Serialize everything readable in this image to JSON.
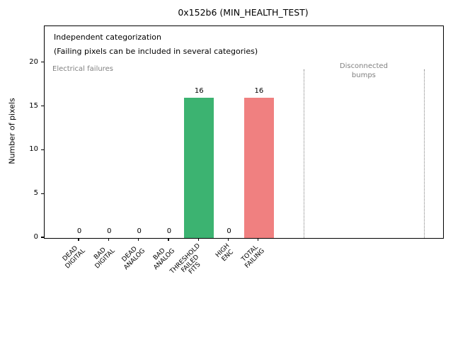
{
  "chart_data": {
    "type": "bar",
    "title": "0x152b6 (MIN_HEALTH_TEST)",
    "ylabel": "Number of pixels",
    "xlabel": "",
    "categories": [
      "DEAD\nDIGITAL",
      "BAD\nDIGITAL",
      "DEAD\nANALOG",
      "BAD\nANALOG",
      "THRESHOLD\nFAILED\nFITS",
      "HIGH\nENC",
      "TOTAL\nFAILING"
    ],
    "values": [
      0,
      0,
      0,
      0,
      16,
      0,
      16
    ],
    "value_labels": [
      "0",
      "0",
      "0",
      "0",
      "16",
      "0",
      "16"
    ],
    "bar_colors": [
      "#3cb371",
      "#3cb371",
      "#3cb371",
      "#3cb371",
      "#3cb371",
      "#3cb371",
      "#f08080"
    ],
    "yticks": [
      0,
      5,
      10,
      15,
      20
    ],
    "ylim": [
      0,
      24.2
    ],
    "xlim": [
      -1.16,
      12.15
    ],
    "grid": false,
    "legend": null,
    "annotations": {
      "line1": "Independent categorization",
      "line2": "(Failing pixels can be included in several categories)",
      "left_region": "Electrical failures",
      "right_region_line1": "Disconnected",
      "right_region_line2": "bumps"
    },
    "region_dividers": {
      "x_positions": [
        7.5,
        11.5
      ],
      "ymax": 19.3,
      "style": "dotted",
      "color": "#808080"
    },
    "colors": {
      "bar_green": "#3cb371",
      "bar_red": "#f08080",
      "muted_text": "#808080",
      "axis": "#000000",
      "background": "#ffffff"
    }
  }
}
